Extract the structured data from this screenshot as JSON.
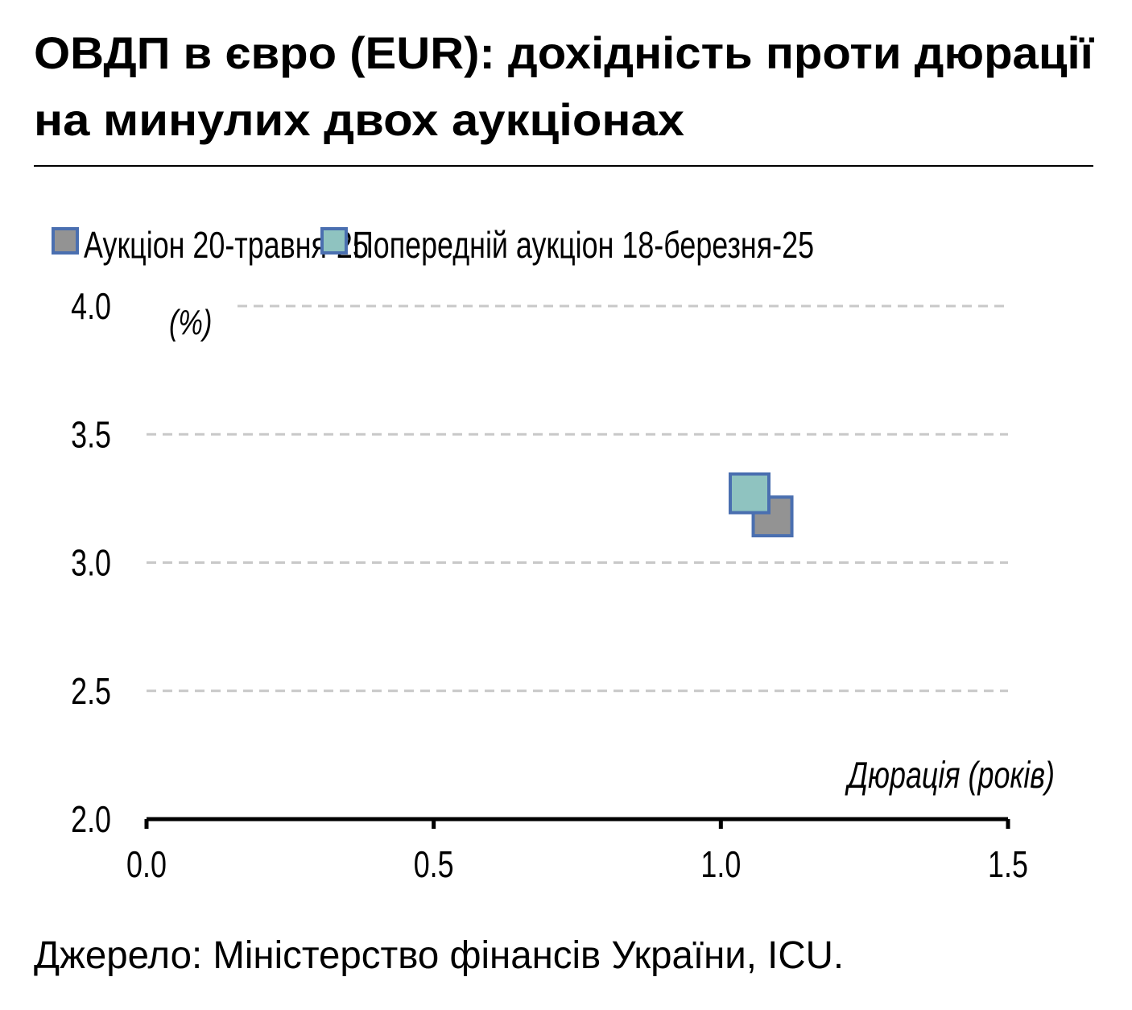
{
  "chart_data": {
    "type": "scatter",
    "title": [
      "ОВДП в євро (EUR): дохідність проти дюрації",
      "на минулих двох аукціонах"
    ],
    "y_label": "(%)",
    "x_label": "Дюрація (років)",
    "source": "Джерело: Міністерство фінансів України, ICU.",
    "series": [
      {
        "name": "Аукціон 20-травня-25",
        "color": "#939393",
        "x": [
          1.09
        ],
        "values": [
          3.18
        ]
      },
      {
        "name": "Попередній аукціон 18-березня-25",
        "color": "#8fc3c0",
        "x": [
          1.05
        ],
        "values": [
          3.27
        ]
      }
    ],
    "marker_edge_color": "#4a6fb0",
    "xlim": [
      0,
      1.5
    ],
    "xticks": [
      {
        "value": 0,
        "label": "0.0"
      },
      {
        "value": 0.5,
        "label": "0.5"
      },
      {
        "value": 1,
        "label": "1.0"
      },
      {
        "value": 1.5,
        "label": "1.5"
      }
    ],
    "ylim": [
      2,
      4
    ],
    "yticks": [
      {
        "value": 2,
        "label": "2.0"
      },
      {
        "value": 2.5,
        "label": "2.5"
      },
      {
        "value": 3,
        "label": "3.0"
      },
      {
        "value": 3.5,
        "label": "3.5"
      },
      {
        "value": 4,
        "label": "4.0"
      }
    ],
    "grid": true,
    "legend": "top"
  }
}
